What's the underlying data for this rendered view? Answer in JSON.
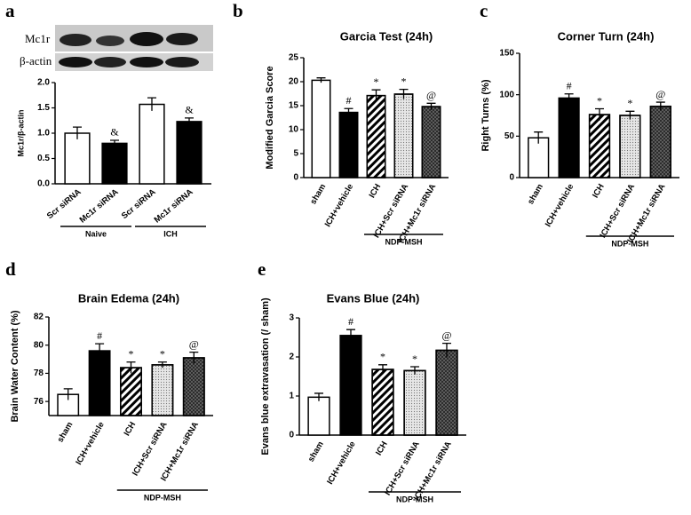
{
  "chart_data": [
    {
      "type": "bar",
      "label": "a",
      "blot_labels": [
        "Mc1r",
        "β-actin"
      ],
      "y_label": "Mc1r/β-actin",
      "categories": [
        "Scr siRNA",
        "Mc1r siRNA",
        "Scr siRNA",
        "Mc1r siRNA"
      ],
      "values": [
        1.0,
        0.8,
        1.57,
        1.23
      ],
      "errors": [
        0.12,
        0.06,
        0.13,
        0.07
      ],
      "annotations": [
        null,
        "&",
        null,
        "&"
      ],
      "group_labels": [
        "Naive",
        "ICH"
      ],
      "colors": [
        "#ffffff",
        "#000000",
        "#ffffff",
        "#000000"
      ],
      "ylim": [
        0,
        2
      ],
      "yticks": [
        {
          "value": 0,
          "label": "0.0"
        },
        {
          "value": 0.5,
          "label": "0.5"
        },
        {
          "value": 1,
          "label": "1.0"
        },
        {
          "value": 1.5,
          "label": "1.5"
        },
        {
          "value": 2,
          "label": "2.0"
        }
      ]
    },
    {
      "type": "bar",
      "label": "b",
      "title": "Garcia Test (24h)",
      "y_label": "Modified Garcia Score",
      "categories": [
        "sham",
        "ICH+vehicle",
        "ICH",
        "ICH+Scr siRNA",
        "ICH+Mc1r siRNA"
      ],
      "values": [
        20.3,
        13.6,
        17.1,
        17.4,
        14.8
      ],
      "errors": [
        0.5,
        0.8,
        1.2,
        1.0,
        0.7
      ],
      "annotations": [
        null,
        "#",
        "*",
        "*",
        "@"
      ],
      "group_labels": [
        "NDP-MSH"
      ],
      "colors": [
        "#ffffff",
        "#000000",
        "#ffffff",
        "#e6e6e6",
        "#6a6a6a"
      ],
      "ylim": [
        0,
        25
      ],
      "yticks": [
        0,
        5,
        10,
        15,
        20,
        25
      ]
    },
    {
      "type": "bar",
      "label": "c",
      "title": "Corner Turn (24h)",
      "y_label": "Right Turns (%)",
      "categories": [
        "sham",
        "ICH+vehicle",
        "ICH",
        "ICH+Scr siRNA",
        "ICH+Mc1r siRNA"
      ],
      "values": [
        48,
        96,
        76,
        75,
        86
      ],
      "errors": [
        7,
        5,
        7,
        5,
        5
      ],
      "annotations": [
        null,
        "#",
        "*",
        "*",
        "@"
      ],
      "group_labels": [
        "NDP-MSH"
      ],
      "colors": [
        "#ffffff",
        "#000000",
        "#ffffff",
        "#e6e6e6",
        "#6a6a6a"
      ],
      "ylim": [
        0,
        150
      ],
      "yticks": [
        0,
        50,
        100,
        150
      ]
    },
    {
      "type": "bar",
      "label": "d",
      "title": "Brain Edema (24h)",
      "y_label": "Brain Water Content (%)",
      "categories": [
        "sham",
        "ICH+vehicle",
        "ICH",
        "ICH+Scr siRNA",
        "ICH+Mc1r siRNA"
      ],
      "values": [
        76.5,
        79.6,
        78.4,
        78.6,
        79.1
      ],
      "errors": [
        0.4,
        0.5,
        0.4,
        0.2,
        0.4
      ],
      "annotations": [
        null,
        "#",
        "*",
        "*",
        "@"
      ],
      "group_labels": [
        "NDP-MSH"
      ],
      "colors": [
        "#ffffff",
        "#000000",
        "#ffffff",
        "#e6e6e6",
        "#6a6a6a"
      ],
      "ylim": [
        75,
        82
      ],
      "yticks": [
        76,
        78,
        80,
        82
      ]
    },
    {
      "type": "bar",
      "label": "e",
      "title": "Evans Blue (24h)",
      "y_label": "Evans blue extravasation (/ sham)",
      "categories": [
        "sham",
        "ICH+vehicle",
        "ICH",
        "ICH+Scr siRNA",
        "ICH+Mc1r siRNA"
      ],
      "values": [
        0.97,
        2.55,
        1.68,
        1.65,
        2.17
      ],
      "errors": [
        0.1,
        0.15,
        0.12,
        0.1,
        0.18
      ],
      "annotations": [
        null,
        "#",
        "*",
        "*",
        "@"
      ],
      "group_labels": [
        "NDP-MSH"
      ],
      "colors": [
        "#ffffff",
        "#000000",
        "#ffffff",
        "#e6e6e6",
        "#6a6a6a"
      ],
      "ylim": [
        0,
        3
      ],
      "yticks": [
        0,
        1,
        2,
        3
      ]
    }
  ]
}
